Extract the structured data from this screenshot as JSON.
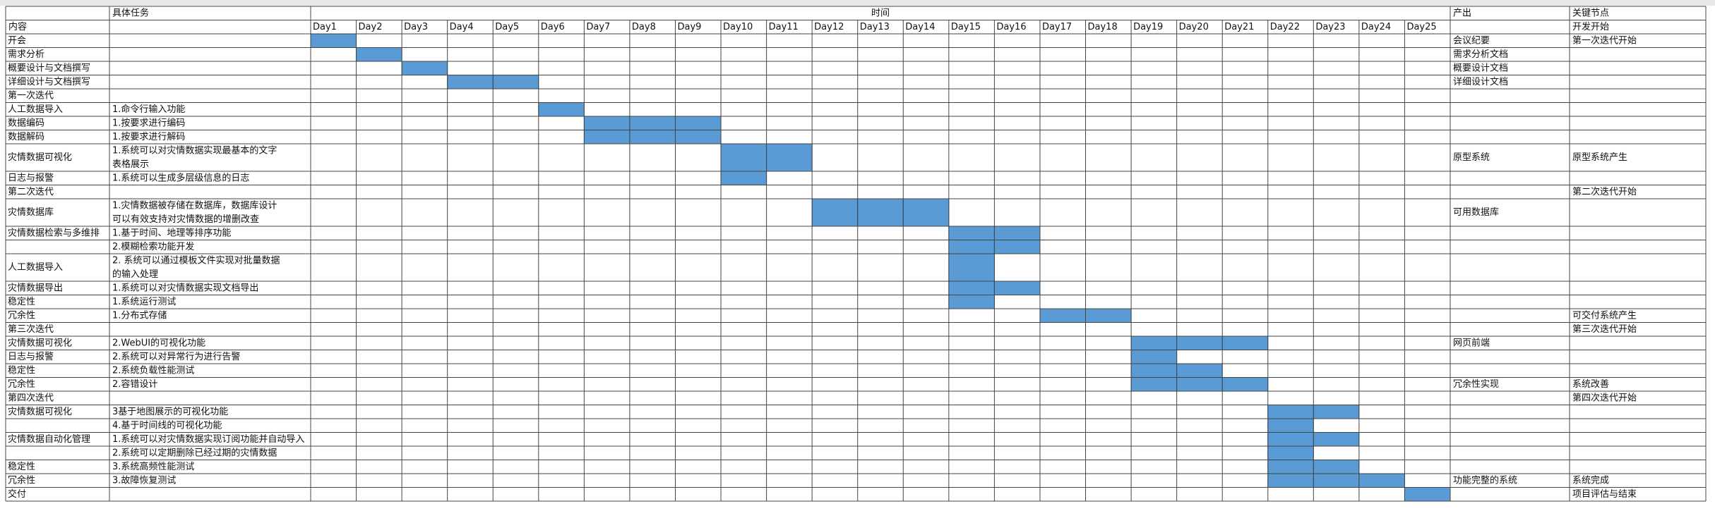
{
  "header": {
    "task_label": "具体任务",
    "time_label": "时间",
    "output_label": "产出",
    "milestone_label": "关键节点",
    "content_label": "内容",
    "first_milestone": "开发开始"
  },
  "days": [
    "Day1",
    "Day2",
    "Day3",
    "Day4",
    "Day5",
    "Day6",
    "Day7",
    "Day8",
    "Day9",
    "Day10",
    "Day11",
    "Day12",
    "Day13",
    "Day14",
    "Day15",
    "Day16",
    "Day17",
    "Day18",
    "Day19",
    "Day20",
    "Day21",
    "Day22",
    "Day23",
    "Day24",
    "Day25"
  ],
  "rows": [
    {
      "task": "开会",
      "start": 1,
      "end": 1,
      "output": "会议纪要",
      "milestone": "第一次迭代开始"
    },
    {
      "task": "需求分析",
      "start": 2,
      "end": 2,
      "output": "需求分析文档"
    },
    {
      "task": "概要设计与文档撰写",
      "start": 3,
      "end": 3,
      "output": "概要设计文档"
    },
    {
      "task": "详细设计与文档撰写",
      "start": 4,
      "end": 5,
      "output": "详细设计文档"
    },
    {
      "task": "第一次迭代"
    },
    {
      "task": "人工数据导入",
      "detail": "1.命令行输入功能",
      "start": 6,
      "end": 6
    },
    {
      "task": "数据编码",
      "detail": "1.按要求进行编码",
      "start": 7,
      "end": 9
    },
    {
      "task": "数据解码",
      "detail": "1.按要求进行解码",
      "start": 7,
      "end": 9
    },
    {
      "task": "灾情数据可视化",
      "detail": [
        "1.系统可以对灾情数据实现最基本的文字",
        "表格展示"
      ],
      "start": 10,
      "end": 11,
      "output": "原型系统",
      "milestone": "原型系统产生"
    },
    {
      "task": "日志与报警",
      "detail": "1.系统可以生成多层级信息的日志",
      "start": 10,
      "end": 10
    },
    {
      "task": "第二次迭代",
      "milestone": "第二次迭代开始"
    },
    {
      "task": "灾情数据库",
      "detail": [
        "1.灾情数据被存储在数据库，数据库设计",
        "可以有效支持对灾情数据的增删改查"
      ],
      "start": 12,
      "end": 14,
      "output": "可用数据库"
    },
    {
      "task": "灾情数据检索与多维排",
      "detail": "1.基于时间、地理等排序功能",
      "start": 15,
      "end": 16
    },
    {
      "detail": "2.模糊检索功能开发",
      "start": 15,
      "end": 16
    },
    {
      "task": "人工数据导入",
      "detail": [
        "2. 系统可以通过模板文件实现对批量数据",
        "的输入处理"
      ],
      "start": 15,
      "end": 15
    },
    {
      "task": "灾情数据导出",
      "detail": "1.系统可以对灾情数据实现文档导出",
      "start": 15,
      "end": 16
    },
    {
      "task": "稳定性",
      "detail": "1.系统运行测试",
      "start": 15,
      "end": 15
    },
    {
      "task": "冗余性",
      "detail": "1.分布式存储",
      "start": 17,
      "end": 18,
      "milestone": "可交付系统产生"
    },
    {
      "task": "第三次迭代",
      "milestone": "第三次迭代开始"
    },
    {
      "task": "灾情数据可视化",
      "detail": "2.WebUI的可视化功能",
      "start": 19,
      "end": 21,
      "output": "网页前端"
    },
    {
      "task": "日志与报警",
      "detail": "2.系统可以对异常行为进行告警",
      "start": 19,
      "end": 19
    },
    {
      "task": "稳定性",
      "detail": "2.系统负载性能测试",
      "start": 19,
      "end": 20
    },
    {
      "task": "冗余性",
      "detail": "2.容错设计",
      "start": 19,
      "end": 21,
      "output": "冗余性实现",
      "milestone": "系统改善"
    },
    {
      "task": "第四次迭代",
      "milestone": "第四次迭代开始"
    },
    {
      "task": "灾情数据可视化",
      "detail": "3基于地图展示的可视化功能",
      "start": 22,
      "end": 23
    },
    {
      "detail": "4.基于时间线的可视化功能",
      "start": 22,
      "end": 22
    },
    {
      "task": "灾情数据自动化管理",
      "detail": "1.系统可以对灾情数据实现订阅功能并自动导入",
      "start": 22,
      "end": 23
    },
    {
      "detail": "2.系统可以定期删除已经过期的灾情数据",
      "start": 22,
      "end": 22
    },
    {
      "task": "稳定性",
      "detail": "3.系统高频性能测试",
      "start": 22,
      "end": 23
    },
    {
      "task": "冗余性",
      "detail": "3.故障恢复测试",
      "start": 22,
      "end": 24,
      "output": "功能完整的系统",
      "milestone": "系统完成"
    },
    {
      "task": "交付",
      "start": 25,
      "end": 25,
      "milestone": "项目评估与结束"
    }
  ]
}
